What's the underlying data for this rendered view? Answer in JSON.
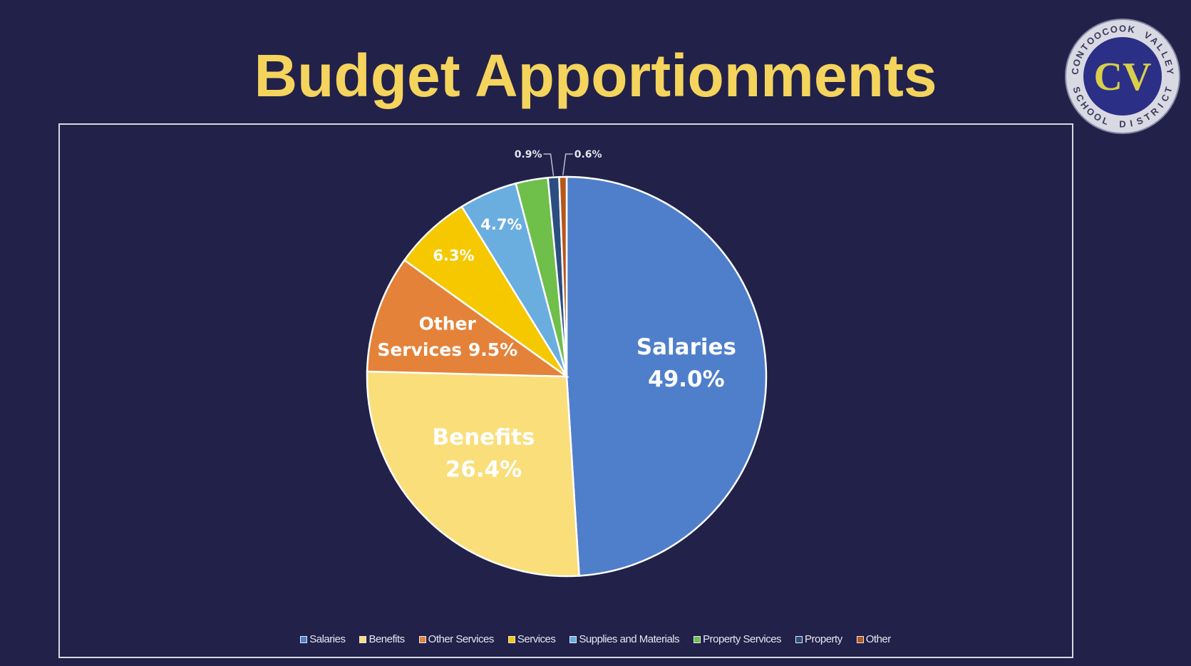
{
  "title": "Budget Apportionments",
  "logo": {
    "text_top": "CONTOOCOOK VALLEY",
    "text_bottom": "SCHOOL DISTRICT",
    "monogram": "CV"
  },
  "chart_data": {
    "type": "pie",
    "title": "Budget Apportionments",
    "legend_position": "bottom",
    "start": "top, clockwise",
    "slices": [
      {
        "name": "Salaries",
        "value": 49.0,
        "label": [
          "Salaries",
          "49.0%"
        ],
        "color": "#4f7fcb"
      },
      {
        "name": "Benefits",
        "value": 26.4,
        "label": [
          "Benefits",
          "26.4%"
        ],
        "color": "#f9de7a"
      },
      {
        "name": "Other Services",
        "value": 9.5,
        "label": [
          "Other",
          "Services 9.5%"
        ],
        "color": "#e4823a"
      },
      {
        "name": "Services",
        "value": 6.3,
        "label": [
          "6.3%"
        ],
        "color": "#f5c800"
      },
      {
        "name": "Supplies and Materials",
        "value": 4.7,
        "label": [
          "4.7%"
        ],
        "color": "#6aaee0"
      },
      {
        "name": "Property Services",
        "value": 2.6,
        "label": [],
        "color": "#6fbf4b"
      },
      {
        "name": "Property",
        "value": 0.9,
        "label": [
          "0.9%"
        ],
        "color": "#2a4e80"
      },
      {
        "name": "Other",
        "value": 0.6,
        "label": [
          "0.6%"
        ],
        "color": "#b8561a"
      }
    ]
  }
}
